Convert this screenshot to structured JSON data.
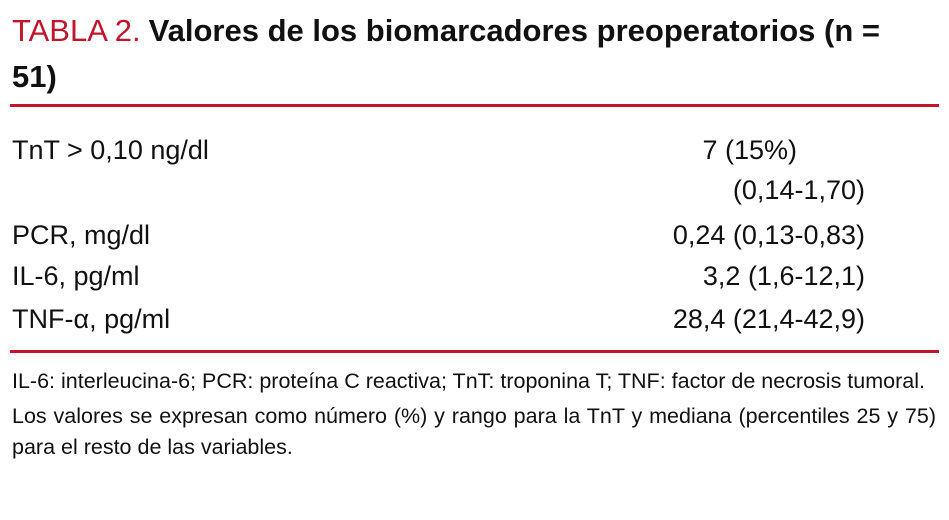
{
  "header": {
    "label": "TABLA 2.",
    "title": "Valores de los biomarcadores preoperatorios (n = 51)"
  },
  "table": {
    "rows": [
      [
        "TnT > 0,10 ng/dl",
        [
          "7 (15%)",
          "(0,14-1,70)"
        ]
      ],
      [
        "PCR, mg/dl",
        "0,24 (0,13-0,83)"
      ],
      [
        "IL-6, pg/ml",
        "3,2 (1,6-12,1)"
      ],
      [
        "TNF-α, pg/ml",
        "28,4 (21,4-42,9)"
      ]
    ]
  },
  "footnotes": [
    "IL-6: interleucina-6; PCR: proteína C reactiva; TnT: troponina T; TNF: factor de necrosis tumoral.",
    "Los valores se expresan como número (%) y rango para la TnT y mediana (percentiles 25 y 75) para el resto de las variables."
  ]
}
